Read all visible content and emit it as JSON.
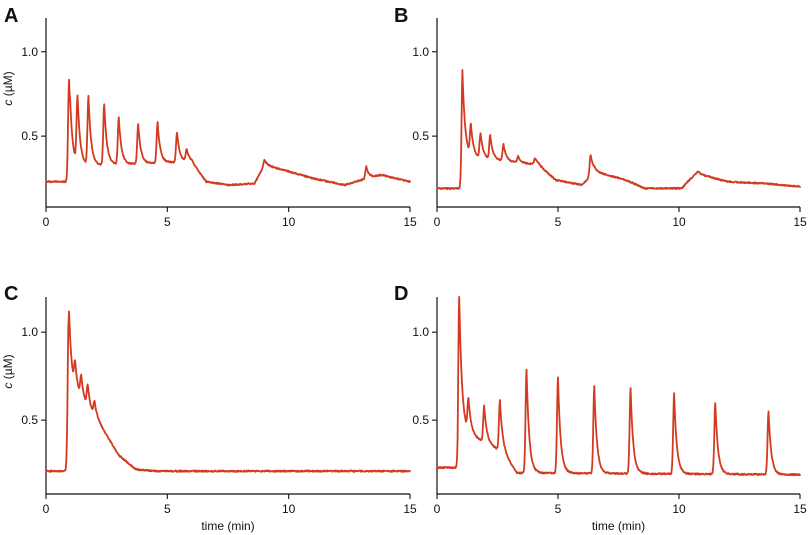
{
  "theme": {
    "trace_color": "#d33a1f",
    "axis_color": "#111111"
  },
  "chart_data": [
    {
      "panel": "A",
      "type": "line",
      "xlabel": "",
      "ylabel": "c (µM)",
      "ylabel_italic": "c",
      "ylabel_unit": " (µM)",
      "xlim": [
        0,
        15
      ],
      "ylim": [
        0.08,
        1.2
      ],
      "xticks": [
        0,
        5,
        10,
        15
      ],
      "yticks": [
        0.5,
        1.0
      ],
      "ytick_labels": [
        "0.5",
        "1.0"
      ],
      "grid": false,
      "series": [
        {
          "baseline_points": [
            [
              0,
              0.23
            ],
            [
              0.95,
              0.23
            ],
            [
              1.0,
              0.32
            ],
            [
              6.0,
              0.35
            ],
            [
              6.6,
              0.23
            ],
            [
              7.5,
              0.21
            ],
            [
              8.6,
              0.22
            ],
            [
              9.0,
              0.33
            ],
            [
              10.0,
              0.29
            ],
            [
              11.0,
              0.25
            ],
            [
              12.3,
              0.21
            ],
            [
              13.0,
              0.24
            ],
            [
              13.8,
              0.27
            ],
            [
              15,
              0.23
            ]
          ],
          "peaks": [
            {
              "x": 0.95,
              "y": 0.83
            },
            {
              "x": 1.3,
              "y": 0.72
            },
            {
              "x": 1.75,
              "y": 0.73
            },
            {
              "x": 2.4,
              "y": 0.69
            },
            {
              "x": 3.0,
              "y": 0.61
            },
            {
              "x": 3.8,
              "y": 0.57
            },
            {
              "x": 4.6,
              "y": 0.58
            },
            {
              "x": 5.4,
              "y": 0.52
            },
            {
              "x": 5.8,
              "y": 0.42
            },
            {
              "x": 9.0,
              "y": 0.36
            },
            {
              "x": 13.2,
              "y": 0.32
            }
          ]
        }
      ]
    },
    {
      "panel": "B",
      "type": "line",
      "xlabel": "",
      "ylabel": "",
      "xlim": [
        0,
        15
      ],
      "ylim": [
        0.08,
        1.2
      ],
      "xticks": [
        0,
        5,
        10,
        15
      ],
      "yticks": [
        0.5,
        1.0
      ],
      "ytick_labels": [
        "0.5",
        "1.0"
      ],
      "grid": false,
      "series": [
        {
          "baseline_points": [
            [
              0,
              0.19
            ],
            [
              1.0,
              0.19
            ],
            [
              1.05,
              0.38
            ],
            [
              4.2,
              0.33
            ],
            [
              4.9,
              0.24
            ],
            [
              6.0,
              0.21
            ],
            [
              6.5,
              0.29
            ],
            [
              7.8,
              0.24
            ],
            [
              8.6,
              0.19
            ],
            [
              10.1,
              0.19
            ],
            [
              10.7,
              0.28
            ],
            [
              12.0,
              0.23
            ],
            [
              13.5,
              0.22
            ],
            [
              15,
              0.2
            ]
          ],
          "peaks": [
            {
              "x": 1.05,
              "y": 0.89
            },
            {
              "x": 1.4,
              "y": 0.55
            },
            {
              "x": 1.8,
              "y": 0.51
            },
            {
              "x": 2.2,
              "y": 0.5
            },
            {
              "x": 2.75,
              "y": 0.45
            },
            {
              "x": 3.35,
              "y": 0.38
            },
            {
              "x": 4.05,
              "y": 0.37
            },
            {
              "x": 6.35,
              "y": 0.39
            },
            {
              "x": 10.8,
              "y": 0.29
            }
          ]
        }
      ]
    },
    {
      "panel": "C",
      "type": "line",
      "xlabel": "time (min)",
      "ylabel": "c (µM)",
      "ylabel_italic": "c",
      "ylabel_unit": " (µM)",
      "xlim": [
        0,
        15
      ],
      "ylim": [
        0.08,
        1.2
      ],
      "xticks": [
        0,
        5,
        10,
        15
      ],
      "yticks": [
        0.5,
        1.0
      ],
      "ytick_labels": [
        "0.5",
        "1.0"
      ],
      "grid": false,
      "series": [
        {
          "baseline_points": [
            [
              0,
              0.21
            ],
            [
              0.88,
              0.21
            ],
            [
              0.95,
              0.7
            ],
            [
              2.2,
              0.48
            ],
            [
              3.0,
              0.3
            ],
            [
              3.7,
              0.22
            ],
            [
              4.5,
              0.21
            ],
            [
              15,
              0.21
            ]
          ],
          "peaks": [
            {
              "x": 0.92,
              "y": 1.04
            },
            {
              "x": 1.2,
              "y": 0.8
            },
            {
              "x": 1.45,
              "y": 0.74
            },
            {
              "x": 1.72,
              "y": 0.69
            },
            {
              "x": 2.0,
              "y": 0.6
            }
          ]
        }
      ]
    },
    {
      "panel": "D",
      "type": "line",
      "xlabel": "time (min)",
      "ylabel": "",
      "xlim": [
        0,
        15
      ],
      "ylim": [
        0.08,
        1.2
      ],
      "xticks": [
        0,
        5,
        10,
        15
      ],
      "yticks": [
        0.5,
        1.0
      ],
      "ytick_labels": [
        "0.5",
        "1.0"
      ],
      "grid": false,
      "series": [
        {
          "baseline_points": [
            [
              0,
              0.23
            ],
            [
              0.85,
              0.23
            ],
            [
              0.9,
              0.45
            ],
            [
              2.7,
              0.32
            ],
            [
              3.3,
              0.2
            ],
            [
              15,
              0.19
            ]
          ],
          "peaks": [
            {
              "x": 0.92,
              "y": 1.2
            },
            {
              "x": 1.3,
              "y": 0.6
            },
            {
              "x": 1.95,
              "y": 0.58
            },
            {
              "x": 2.6,
              "y": 0.61
            },
            {
              "x": 3.7,
              "y": 0.79
            },
            {
              "x": 5.0,
              "y": 0.74
            },
            {
              "x": 6.5,
              "y": 0.69
            },
            {
              "x": 8.0,
              "y": 0.68
            },
            {
              "x": 9.8,
              "y": 0.65
            },
            {
              "x": 11.5,
              "y": 0.6
            },
            {
              "x": 13.7,
              "y": 0.55
            }
          ]
        }
      ]
    }
  ]
}
